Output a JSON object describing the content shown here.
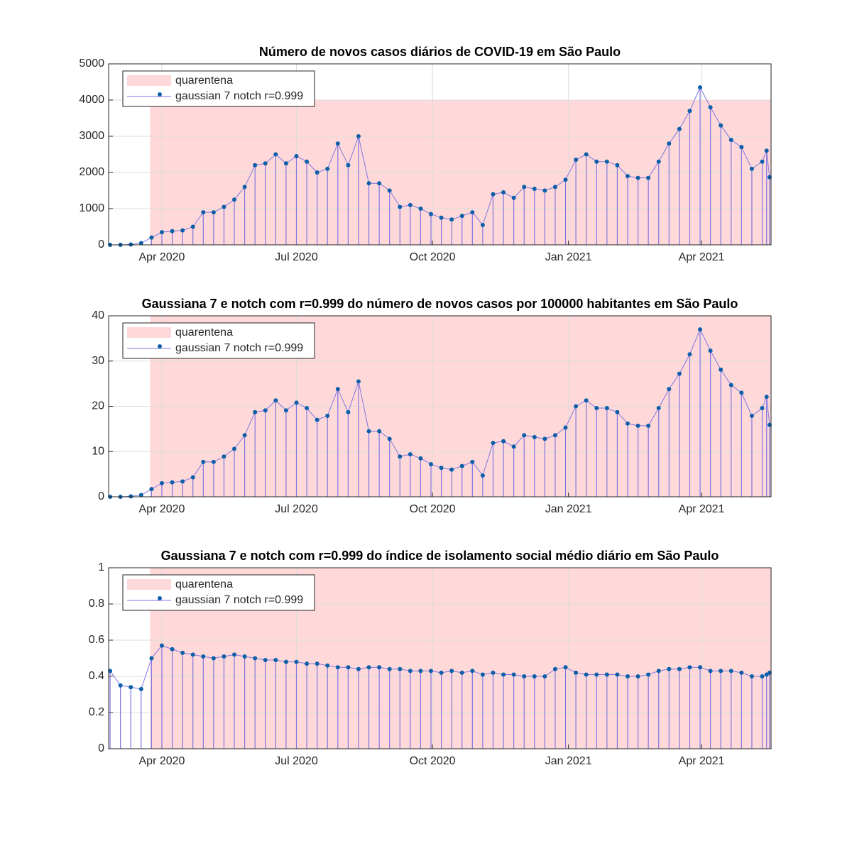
{
  "chart_data": [
    {
      "type": "stem",
      "title": "Número de novos casos diários de COVID-19 em São Paulo",
      "xlim": [
        "2020-02-25",
        "2021-05-18"
      ],
      "ylim": [
        0,
        5000
      ],
      "yticks": [
        0,
        1000,
        2000,
        3000,
        4000,
        5000
      ],
      "xticks": [
        {
          "value": "2020-04-01",
          "label": "Apr 2020"
        },
        {
          "value": "2020-07-01",
          "label": "Jul 2020"
        },
        {
          "value": "2020-10-01",
          "label": "Oct 2020"
        },
        {
          "value": "2021-01-01",
          "label": "Jan 2021"
        },
        {
          "value": "2021-04-01",
          "label": "Apr 2021"
        }
      ],
      "grid": true,
      "legend": "upper left",
      "quarantine": {
        "name": "quarentena",
        "start": "2020-03-24",
        "end": "2021-05-18",
        "top": 4000,
        "color": "#ffd9d9"
      },
      "x": [
        "2020-02-26",
        "2020-03-04",
        "2020-03-11",
        "2020-03-18",
        "2020-03-25",
        "2020-04-01",
        "2020-04-08",
        "2020-04-15",
        "2020-04-22",
        "2020-04-29",
        "2020-05-06",
        "2020-05-13",
        "2020-05-20",
        "2020-05-27",
        "2020-06-03",
        "2020-06-10",
        "2020-06-17",
        "2020-06-24",
        "2020-07-01",
        "2020-07-08",
        "2020-07-15",
        "2020-07-22",
        "2020-07-29",
        "2020-08-05",
        "2020-08-12",
        "2020-08-19",
        "2020-08-26",
        "2020-09-02",
        "2020-09-09",
        "2020-09-16",
        "2020-09-23",
        "2020-09-30",
        "2020-10-07",
        "2020-10-14",
        "2020-10-21",
        "2020-10-28",
        "2020-11-04",
        "2020-11-11",
        "2020-11-18",
        "2020-11-25",
        "2020-12-02",
        "2020-12-09",
        "2020-12-16",
        "2020-12-23",
        "2020-12-30",
        "2021-01-06",
        "2021-01-13",
        "2021-01-20",
        "2021-01-27",
        "2021-02-03",
        "2021-02-10",
        "2021-02-17",
        "2021-02-24",
        "2021-03-03",
        "2021-03-10",
        "2021-03-17",
        "2021-03-24",
        "2021-03-31",
        "2021-04-07",
        "2021-04-14",
        "2021-04-21",
        "2021-04-28",
        "2021-05-05",
        "2021-05-12",
        "2021-05-15",
        "2021-05-17"
      ],
      "series": [
        {
          "name": "gaussian 7 notch r=0.999",
          "color": "#0c5fa8",
          "stem_color": "#7f76e0",
          "values": [
            0,
            0,
            10,
            50,
            200,
            350,
            380,
            400,
            500,
            900,
            900,
            1050,
            1250,
            1600,
            2200,
            2250,
            2500,
            2250,
            2450,
            2300,
            2000,
            2100,
            2800,
            2200,
            3000,
            1700,
            1700,
            1500,
            1050,
            1100,
            1000,
            850,
            750,
            700,
            800,
            900,
            550,
            1400,
            1450,
            1300,
            1600,
            1550,
            1500,
            1600,
            1800,
            2350,
            2500,
            2300,
            2300,
            2200,
            1900,
            1850,
            1850,
            2300,
            2800,
            3200,
            3700,
            4350,
            3800,
            3300,
            2900,
            2700,
            2100,
            2300,
            2600,
            1870
          ]
        }
      ]
    },
    {
      "type": "stem",
      "title": "Gaussiana 7 e notch com r=0.999 do número de novos casos por 100000 habitantes em São Paulo",
      "xlim": [
        "2020-02-25",
        "2021-05-18"
      ],
      "ylim": [
        0,
        40
      ],
      "yticks": [
        0,
        10,
        20,
        30,
        40
      ],
      "xticks": [
        {
          "value": "2020-04-01",
          "label": "Apr 2020"
        },
        {
          "value": "2020-07-01",
          "label": "Jul 2020"
        },
        {
          "value": "2020-10-01",
          "label": "Oct 2020"
        },
        {
          "value": "2021-01-01",
          "label": "Jan 2021"
        },
        {
          "value": "2021-04-01",
          "label": "Apr 2021"
        }
      ],
      "grid": true,
      "legend": "upper left",
      "quarantine": {
        "name": "quarentena",
        "start": "2020-03-24",
        "end": "2021-05-18",
        "top": 40,
        "color": "#ffd9d9"
      },
      "x": [
        "2020-02-26",
        "2020-03-04",
        "2020-03-11",
        "2020-03-18",
        "2020-03-25",
        "2020-04-01",
        "2020-04-08",
        "2020-04-15",
        "2020-04-22",
        "2020-04-29",
        "2020-05-06",
        "2020-05-13",
        "2020-05-20",
        "2020-05-27",
        "2020-06-03",
        "2020-06-10",
        "2020-06-17",
        "2020-06-24",
        "2020-07-01",
        "2020-07-08",
        "2020-07-15",
        "2020-07-22",
        "2020-07-29",
        "2020-08-05",
        "2020-08-12",
        "2020-08-19",
        "2020-08-26",
        "2020-09-02",
        "2020-09-09",
        "2020-09-16",
        "2020-09-23",
        "2020-09-30",
        "2020-10-07",
        "2020-10-14",
        "2020-10-21",
        "2020-10-28",
        "2020-11-04",
        "2020-11-11",
        "2020-11-18",
        "2020-11-25",
        "2020-12-02",
        "2020-12-09",
        "2020-12-16",
        "2020-12-23",
        "2020-12-30",
        "2021-01-06",
        "2021-01-13",
        "2021-01-20",
        "2021-01-27",
        "2021-02-03",
        "2021-02-10",
        "2021-02-17",
        "2021-02-24",
        "2021-03-03",
        "2021-03-10",
        "2021-03-17",
        "2021-03-24",
        "2021-03-31",
        "2021-04-07",
        "2021-04-14",
        "2021-04-21",
        "2021-04-28",
        "2021-05-05",
        "2021-05-12",
        "2021-05-15",
        "2021-05-17"
      ],
      "series": [
        {
          "name": "gaussian 7 notch r=0.999",
          "color": "#0c5fa8",
          "stem_color": "#7f76e0",
          "values": [
            0,
            0,
            0.1,
            0.4,
            1.7,
            3.0,
            3.2,
            3.4,
            4.3,
            7.7,
            7.7,
            8.9,
            10.6,
            13.6,
            18.7,
            19.1,
            21.3,
            19.1,
            20.8,
            19.6,
            17.0,
            17.9,
            23.8,
            18.7,
            25.5,
            14.5,
            14.5,
            12.8,
            8.9,
            9.4,
            8.5,
            7.2,
            6.4,
            6.0,
            6.8,
            7.7,
            4.7,
            11.9,
            12.3,
            11.1,
            13.6,
            13.2,
            12.8,
            13.6,
            15.3,
            20.0,
            21.3,
            19.6,
            19.6,
            18.7,
            16.2,
            15.7,
            15.7,
            19.6,
            23.8,
            27.2,
            31.5,
            37.0,
            32.3,
            28.1,
            24.7,
            23.0,
            17.9,
            19.6,
            22.1,
            15.9
          ]
        }
      ]
    },
    {
      "type": "stem",
      "title": "Gaussiana 7 e notch com r=0.999 do índice de isolamento social médio diário em São Paulo",
      "xlim": [
        "2020-02-25",
        "2021-05-18"
      ],
      "ylim": [
        0,
        1
      ],
      "yticks": [
        0,
        0.2,
        0.4,
        0.6,
        0.8,
        1
      ],
      "xticks": [
        {
          "value": "2020-04-01",
          "label": "Apr 2020"
        },
        {
          "value": "2020-07-01",
          "label": "Jul 2020"
        },
        {
          "value": "2020-10-01",
          "label": "Oct 2020"
        },
        {
          "value": "2021-01-01",
          "label": "Jan 2021"
        },
        {
          "value": "2021-04-01",
          "label": "Apr 2021"
        }
      ],
      "grid": true,
      "legend": "upper left",
      "quarantine": {
        "name": "quarentena",
        "start": "2020-03-24",
        "end": "2021-05-18",
        "top": 1,
        "color": "#ffd9d9"
      },
      "x": [
        "2020-02-26",
        "2020-03-04",
        "2020-03-11",
        "2020-03-18",
        "2020-03-25",
        "2020-04-01",
        "2020-04-08",
        "2020-04-15",
        "2020-04-22",
        "2020-04-29",
        "2020-05-06",
        "2020-05-13",
        "2020-05-20",
        "2020-05-27",
        "2020-06-03",
        "2020-06-10",
        "2020-06-17",
        "2020-06-24",
        "2020-07-01",
        "2020-07-08",
        "2020-07-15",
        "2020-07-22",
        "2020-07-29",
        "2020-08-05",
        "2020-08-12",
        "2020-08-19",
        "2020-08-26",
        "2020-09-02",
        "2020-09-09",
        "2020-09-16",
        "2020-09-23",
        "2020-09-30",
        "2020-10-07",
        "2020-10-14",
        "2020-10-21",
        "2020-10-28",
        "2020-11-04",
        "2020-11-11",
        "2020-11-18",
        "2020-11-25",
        "2020-12-02",
        "2020-12-09",
        "2020-12-16",
        "2020-12-23",
        "2020-12-30",
        "2021-01-06",
        "2021-01-13",
        "2021-01-20",
        "2021-01-27",
        "2021-02-03",
        "2021-02-10",
        "2021-02-17",
        "2021-02-24",
        "2021-03-03",
        "2021-03-10",
        "2021-03-17",
        "2021-03-24",
        "2021-03-31",
        "2021-04-07",
        "2021-04-14",
        "2021-04-21",
        "2021-04-28",
        "2021-05-05",
        "2021-05-12",
        "2021-05-15",
        "2021-05-17"
      ],
      "series": [
        {
          "name": "gaussian 7 notch r=0.999",
          "color": "#0c5fa8",
          "stem_color": "#7f76e0",
          "values": [
            0.43,
            0.35,
            0.34,
            0.33,
            0.5,
            0.57,
            0.55,
            0.53,
            0.52,
            0.51,
            0.5,
            0.51,
            0.52,
            0.51,
            0.5,
            0.49,
            0.49,
            0.48,
            0.48,
            0.47,
            0.47,
            0.46,
            0.45,
            0.45,
            0.44,
            0.45,
            0.45,
            0.44,
            0.44,
            0.43,
            0.43,
            0.43,
            0.42,
            0.43,
            0.42,
            0.43,
            0.41,
            0.42,
            0.41,
            0.41,
            0.4,
            0.4,
            0.4,
            0.44,
            0.45,
            0.42,
            0.41,
            0.41,
            0.41,
            0.41,
            0.4,
            0.4,
            0.41,
            0.43,
            0.44,
            0.44,
            0.45,
            0.45,
            0.43,
            0.43,
            0.43,
            0.42,
            0.4,
            0.4,
            0.41,
            0.42
          ]
        }
      ]
    }
  ]
}
